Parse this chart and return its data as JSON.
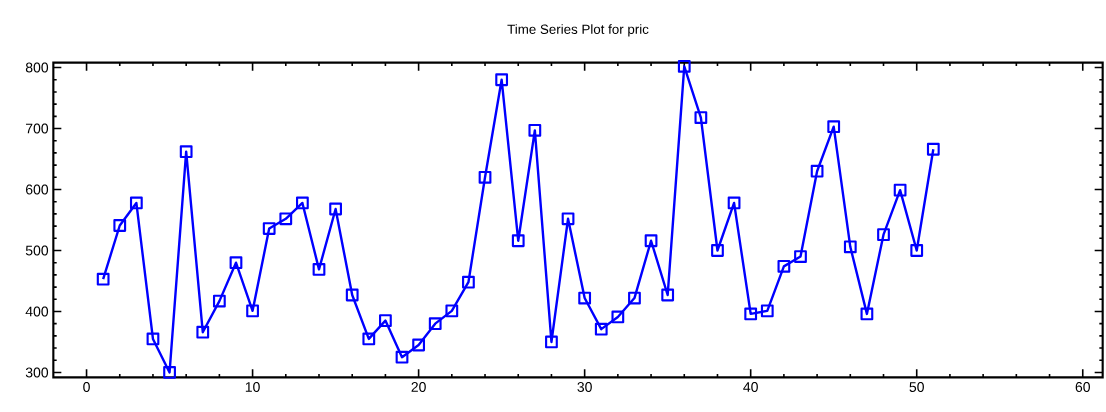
{
  "chart_data": {
    "type": "line",
    "title": "Time Series Plot for pric",
    "x": [
      1,
      2,
      3,
      4,
      5,
      6,
      7,
      8,
      9,
      10,
      11,
      12,
      13,
      14,
      15,
      16,
      17,
      18,
      19,
      20,
      21,
      22,
      23,
      24,
      25,
      26,
      27,
      28,
      29,
      30,
      31,
      32,
      33,
      34,
      35,
      36,
      37,
      38,
      39,
      40,
      41,
      42,
      43,
      44,
      45,
      46,
      47,
      48,
      49,
      50,
      51
    ],
    "series": [
      {
        "color": "#0000ff",
        "values": [
          453,
          541,
          578,
          355,
          300,
          662,
          366,
          417,
          480,
          401,
          536,
          552,
          578,
          469,
          568,
          427,
          355,
          385,
          325,
          345,
          380,
          401,
          448,
          620,
          780,
          516,
          697,
          350,
          552,
          422,
          371,
          391,
          422,
          516,
          427,
          802,
          718,
          500,
          578,
          396,
          401,
          474,
          490,
          630,
          703,
          506,
          396,
          526,
          599,
          500,
          666
        ]
      }
    ],
    "xlim": [
      -2,
      61.2
    ],
    "ylim": [
      292,
      808
    ],
    "xticks": [
      0,
      10,
      20,
      30,
      40,
      50,
      60
    ],
    "yticks": [
      300,
      400,
      500,
      600,
      700,
      800
    ],
    "grid": false,
    "marker": "square",
    "line_style": "solid"
  }
}
